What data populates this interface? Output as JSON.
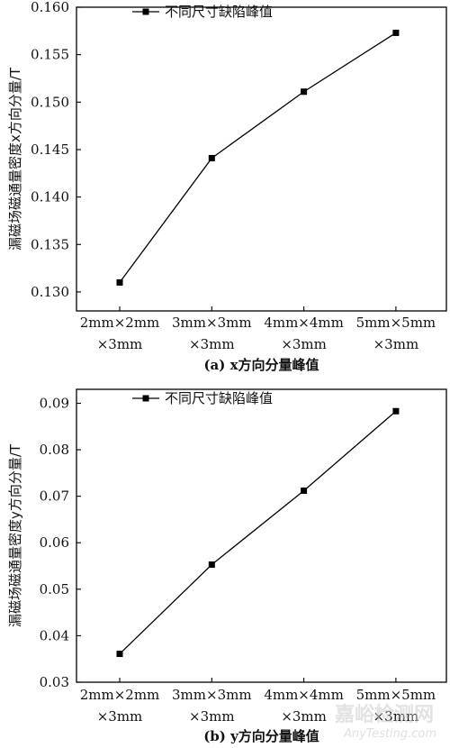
{
  "chart_data": [
    {
      "type": "line",
      "categories": [
        "2mm×2mm ×3mm",
        "3mm×3mm ×3mm",
        "4mm×4mm ×3mm",
        "5mm×5mm ×3mm"
      ],
      "category_lines": [
        [
          "2mm×2mm",
          "×3mm"
        ],
        [
          "3mm×3mm",
          "×3mm"
        ],
        [
          "4mm×4mm",
          "×3mm"
        ],
        [
          "5mm×5mm",
          "×3mm"
        ]
      ],
      "series": [
        {
          "name": "不同尺寸缺陷峰值",
          "values": [
            0.131,
            0.1441,
            0.1511,
            0.1573
          ]
        }
      ],
      "ylabel": "漏磁场磁通量密度x方向分量/T",
      "ylim": [
        0.128,
        0.16
      ],
      "yticks": [
        "0.130",
        "0.135",
        "0.140",
        "0.145",
        "0.150",
        "0.155",
        "0.160"
      ],
      "ytick_values": [
        0.13,
        0.135,
        0.14,
        0.145,
        0.15,
        0.155,
        0.16
      ],
      "caption": "(a) x方向分量峰值",
      "legend": "top-left",
      "marker": "square",
      "grid": false
    },
    {
      "type": "line",
      "categories": [
        "2mm×2mm ×3mm",
        "3mm×3mm ×3mm",
        "4mm×4mm ×3mm",
        "5mm×5mm ×3mm"
      ],
      "category_lines": [
        [
          "2mm×2mm",
          "×3mm"
        ],
        [
          "3mm×3mm",
          "×3mm"
        ],
        [
          "4mm×4mm",
          "×3mm"
        ],
        [
          "5mm×5mm",
          "×3mm"
        ]
      ],
      "series": [
        {
          "name": "不同尺寸缺陷峰值",
          "values": [
            0.0361,
            0.0553,
            0.0712,
            0.0883
          ]
        }
      ],
      "ylabel": "漏磁场磁通量密度y方向分量/T",
      "ylim": [
        0.03,
        0.093
      ],
      "yticks": [
        "0.03",
        "0.04",
        "0.05",
        "0.06",
        "0.07",
        "0.08",
        "0.09"
      ],
      "ytick_values": [
        0.03,
        0.04,
        0.05,
        0.06,
        0.07,
        0.08,
        0.09
      ],
      "caption": "(b) y方向分量峰值",
      "legend": "top-left",
      "marker": "square",
      "grid": false
    }
  ],
  "watermark": {
    "main": "嘉峪检测网",
    "sub": "AnyTesting.com"
  }
}
